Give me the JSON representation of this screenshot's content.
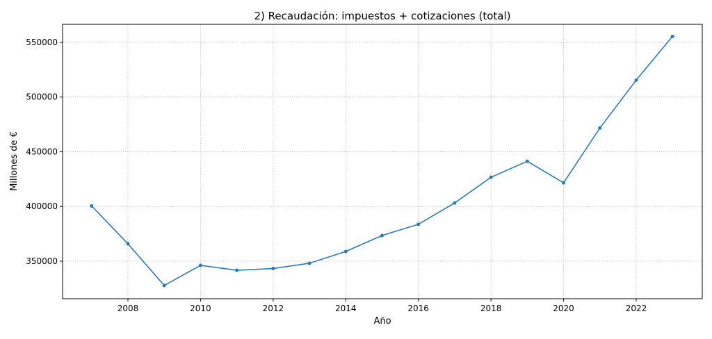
{
  "chart_data": {
    "type": "line",
    "title": "2) Recaudación: impuestos + cotizaciones (total)",
    "xlabel": "Año",
    "ylabel": "Millones de €",
    "x": [
      2007,
      2008,
      2009,
      2010,
      2011,
      2012,
      2013,
      2014,
      2015,
      2016,
      2017,
      2018,
      2019,
      2020,
      2021,
      2022,
      2023
    ],
    "values": [
      400500,
      365900,
      327800,
      346200,
      341700,
      343300,
      348100,
      358900,
      373500,
      383700,
      403200,
      426700,
      441300,
      421600,
      471700,
      515500,
      555500
    ],
    "xlim": [
      2006.2,
      2023.82
    ],
    "ylim": [
      315700,
      566500
    ],
    "xticks": [
      2008,
      2010,
      2012,
      2014,
      2016,
      2018,
      2020,
      2022
    ],
    "yticks": [
      350000,
      400000,
      450000,
      500000,
      550000
    ],
    "grid": true,
    "markers": true,
    "color": "#2a7ab5"
  }
}
